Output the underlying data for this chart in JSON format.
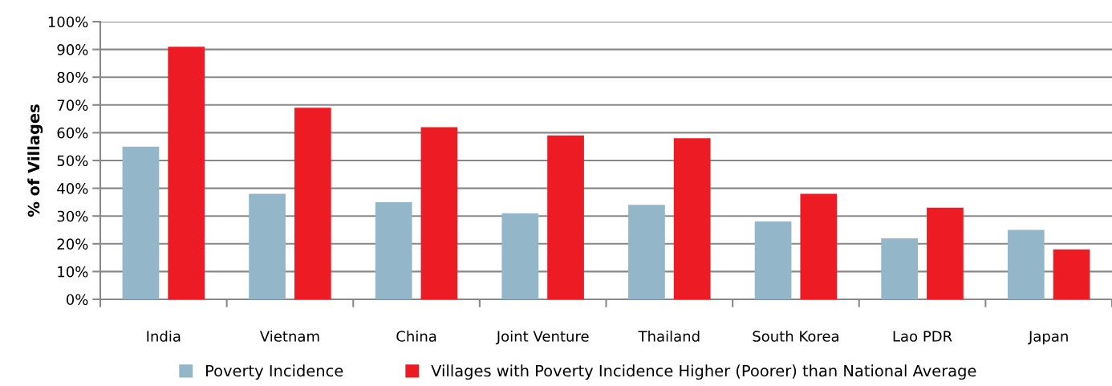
{
  "chart_data": {
    "type": "bar",
    "ylabel": "% of Villages",
    "categories": [
      "India",
      "Vietnam",
      "China",
      "Joint Venture",
      "Thailand",
      "South Korea",
      "Lao PDR",
      "Japan"
    ],
    "series": [
      {
        "name": "Poverty Incidence",
        "color": "#93b6c8",
        "values": [
          55,
          38,
          35,
          31,
          34,
          28,
          22,
          25
        ]
      },
      {
        "name": "Villages with Poverty Incidence Higher (Poorer) than National Average",
        "color": "#ed1c24",
        "values": [
          91,
          69,
          62,
          59,
          58,
          38,
          33,
          18
        ]
      }
    ],
    "ylim": [
      0,
      100
    ],
    "yticks": [
      {
        "value": 0,
        "label": "0%"
      },
      {
        "value": 10,
        "label": "10%"
      },
      {
        "value": 20,
        "label": "20%"
      },
      {
        "value": 30,
        "label": "30%"
      },
      {
        "value": 40,
        "label": "40%"
      },
      {
        "value": 50,
        "label": "50%"
      },
      {
        "value": 60,
        "label": "60%"
      },
      {
        "value": 70,
        "label": "70%"
      },
      {
        "value": 80,
        "label": "80%"
      },
      {
        "value": 90,
        "label": "90%"
      },
      {
        "value": 100,
        "label": "100%"
      }
    ],
    "grid": "y",
    "legend": "bottom"
  }
}
